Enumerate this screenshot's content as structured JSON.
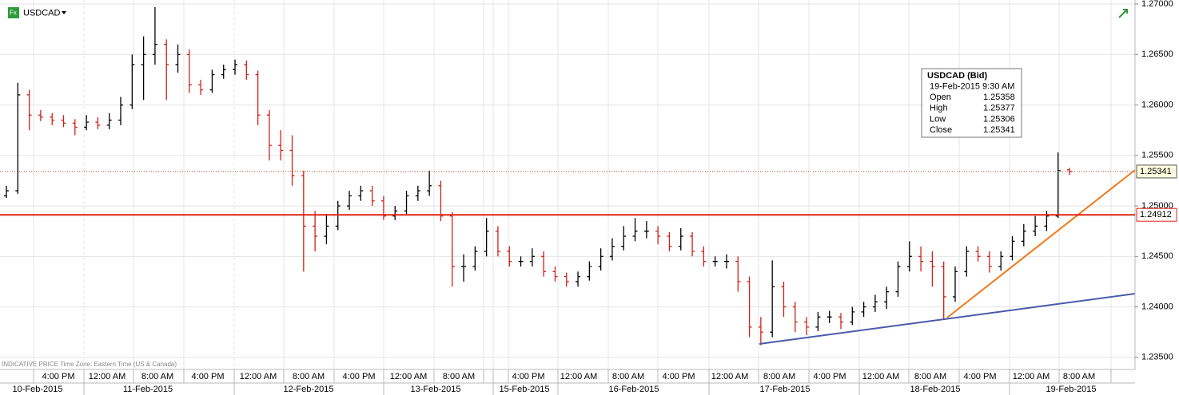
{
  "chart_data": {
    "type": "ohlc",
    "symbol": "USDCAD",
    "footer": "INDICATIVE PRICE   Time Zone: Eastern Time (US & Canada)",
    "up_color": "#000000",
    "down_color": "#d0201a",
    "ylim": [
      1.2338,
      1.2704
    ],
    "yticks": [
      {
        "value": 1.235,
        "label": "1.23500"
      },
      {
        "value": 1.24,
        "label": "1.24000"
      },
      {
        "value": 1.245,
        "label": "1.24500"
      },
      {
        "value": 1.25,
        "label": "1.25000"
      },
      {
        "value": 1.255,
        "label": "1.25500"
      },
      {
        "value": 1.26,
        "label": "1.26000"
      },
      {
        "value": 1.265,
        "label": "1.26500"
      },
      {
        "value": 1.27,
        "label": "1.27000"
      }
    ],
    "grid": true,
    "hline": 1.24912,
    "hline_color": "#e0231a",
    "last_price": 1.25341,
    "time_labels": [
      "4:00 PM",
      "12:00 AM",
      "8:00 AM",
      "4:00 PM",
      "12:00 AM",
      "8:00 AM",
      "4:00 PM",
      "12:00 AM",
      "8:00 AM",
      "4:00 PM",
      "12:00 AM",
      "8:00 AM",
      "4:00 PM",
      "12:00 AM",
      "8:00 AM",
      "4:00 PM",
      "12:00 AM",
      "8:00 AM",
      "4:00 PM",
      "12:00 AM",
      "8:00 AM"
    ],
    "date_labels": [
      "10-Feb-2015",
      "11-Feb-2015",
      "12-Feb-2015",
      "13-Feb-2015",
      "15-Feb-2015",
      "16-Feb-2015",
      "17-Feb-2015",
      "18-Feb-2015",
      "19-Feb-2015"
    ],
    "tooltip": {
      "title": "USDCAD (Bid)",
      "time": "19-Feb-2015 9:30 AM",
      "rows": [
        [
          "Open",
          1.25358
        ],
        [
          "High",
          1.25377
        ],
        [
          "Low",
          1.25306
        ],
        [
          "Close",
          1.25341
        ]
      ]
    },
    "ohlc": [
      [
        1.251,
        1.252,
        1.2508,
        1.2515
      ],
      [
        1.2515,
        1.2622,
        1.2512,
        1.261
      ],
      [
        1.261,
        1.2615,
        1.2575,
        1.259
      ],
      [
        1.259,
        1.2595,
        1.2584,
        1.2588
      ],
      [
        1.2588,
        1.2592,
        1.258,
        1.2585
      ],
      [
        1.2585,
        1.259,
        1.2578,
        1.2582
      ],
      [
        1.2582,
        1.2586,
        1.257,
        1.2578
      ],
      [
        1.2578,
        1.259,
        1.2575,
        1.2583
      ],
      [
        1.2583,
        1.2588,
        1.2576,
        1.258
      ],
      [
        1.258,
        1.2592,
        1.2576,
        1.2585
      ],
      [
        1.2585,
        1.2608,
        1.258,
        1.26
      ],
      [
        1.26,
        1.265,
        1.2596,
        1.264
      ],
      [
        1.264,
        1.2668,
        1.2605,
        1.265
      ],
      [
        1.265,
        1.2697,
        1.264,
        1.266
      ],
      [
        1.266,
        1.2665,
        1.2605,
        1.264
      ],
      [
        1.264,
        1.266,
        1.2632,
        1.265
      ],
      [
        1.265,
        1.2655,
        1.2612,
        1.262
      ],
      [
        1.262,
        1.2625,
        1.261,
        1.2615
      ],
      [
        1.2615,
        1.2635,
        1.2612,
        1.263
      ],
      [
        1.263,
        1.264,
        1.2626,
        1.2635
      ],
      [
        1.2635,
        1.2645,
        1.263,
        1.264
      ],
      [
        1.264,
        1.2644,
        1.2625,
        1.263
      ],
      [
        1.263,
        1.2634,
        1.258,
        1.259
      ],
      [
        1.259,
        1.2595,
        1.2545,
        1.256
      ],
      [
        1.256,
        1.2575,
        1.2545,
        1.2555
      ],
      [
        1.2555,
        1.257,
        1.252,
        1.253
      ],
      [
        1.253,
        1.2535,
        1.2435,
        1.248
      ],
      [
        1.248,
        1.2495,
        1.2455,
        1.247
      ],
      [
        1.247,
        1.2492,
        1.2462,
        1.248
      ],
      [
        1.248,
        1.2505,
        1.2476,
        1.25
      ],
      [
        1.25,
        1.2515,
        1.2496,
        1.251
      ],
      [
        1.251,
        1.252,
        1.2505,
        1.2515
      ],
      [
        1.2515,
        1.252,
        1.25,
        1.2505
      ],
      [
        1.2505,
        1.251,
        1.2486,
        1.249
      ],
      [
        1.249,
        1.25,
        1.2486,
        1.2495
      ],
      [
        1.2495,
        1.2515,
        1.2492,
        1.251
      ],
      [
        1.251,
        1.252,
        1.2505,
        1.2515
      ],
      [
        1.2515,
        1.2535,
        1.251,
        1.252
      ],
      [
        1.252,
        1.2525,
        1.2485,
        1.249
      ],
      [
        1.249,
        1.2494,
        1.242,
        1.244
      ],
      [
        1.244,
        1.2452,
        1.2425,
        1.244
      ],
      [
        1.244,
        1.246,
        1.2436,
        1.2455
      ],
      [
        1.2455,
        1.2488,
        1.245,
        1.2475
      ],
      [
        1.2475,
        1.248,
        1.245,
        1.2455
      ],
      [
        1.2455,
        1.246,
        1.244,
        1.2445
      ],
      [
        1.2445,
        1.245,
        1.244,
        1.2445
      ],
      [
        1.2445,
        1.2458,
        1.244,
        1.245
      ],
      [
        1.245,
        1.2455,
        1.243,
        1.2435
      ],
      [
        1.2435,
        1.244,
        1.2425,
        1.243
      ],
      [
        1.243,
        1.2434,
        1.242,
        1.2425
      ],
      [
        1.2425,
        1.2435,
        1.242,
        1.243
      ],
      [
        1.243,
        1.2445,
        1.2426,
        1.244
      ],
      [
        1.244,
        1.2458,
        1.2436,
        1.245
      ],
      [
        1.245,
        1.2468,
        1.2446,
        1.246
      ],
      [
        1.246,
        1.248,
        1.2456,
        1.247
      ],
      [
        1.247,
        1.2488,
        1.2465,
        1.2475
      ],
      [
        1.2475,
        1.2485,
        1.2468,
        1.2475
      ],
      [
        1.2475,
        1.248,
        1.2462,
        1.247
      ],
      [
        1.247,
        1.2474,
        1.2455,
        1.246
      ],
      [
        1.246,
        1.2478,
        1.2456,
        1.247
      ],
      [
        1.247,
        1.2474,
        1.245,
        1.2455
      ],
      [
        1.2455,
        1.246,
        1.244,
        1.2445
      ],
      [
        1.2445,
        1.245,
        1.244,
        1.2445
      ],
      [
        1.2445,
        1.2452,
        1.2438,
        1.2445
      ],
      [
        1.2445,
        1.245,
        1.2415,
        1.2425
      ],
      [
        1.2425,
        1.243,
        1.237,
        1.238
      ],
      [
        1.238,
        1.239,
        1.2362,
        1.2375
      ],
      [
        1.2375,
        1.2446,
        1.237,
        1.242
      ],
      [
        1.242,
        1.2425,
        1.239,
        1.24
      ],
      [
        1.24,
        1.2405,
        1.2375,
        1.2385
      ],
      [
        1.2385,
        1.239,
        1.2372,
        1.238
      ],
      [
        1.238,
        1.2395,
        1.2376,
        1.239
      ],
      [
        1.239,
        1.2396,
        1.2384,
        1.239
      ],
      [
        1.239,
        1.2394,
        1.2378,
        1.2385
      ],
      [
        1.2385,
        1.24,
        1.2382,
        1.2395
      ],
      [
        1.2395,
        1.2405,
        1.239,
        1.24
      ],
      [
        1.24,
        1.2412,
        1.2395,
        1.2405
      ],
      [
        1.2405,
        1.242,
        1.2398,
        1.2415
      ],
      [
        1.2415,
        1.2445,
        1.241,
        1.244
      ],
      [
        1.244,
        1.2465,
        1.2435,
        1.245
      ],
      [
        1.245,
        1.246,
        1.2435,
        1.2445
      ],
      [
        1.2445,
        1.2455,
        1.242,
        1.244
      ],
      [
        1.244,
        1.2445,
        1.2388,
        1.241
      ],
      [
        1.241,
        1.244,
        1.2405,
        1.2435
      ],
      [
        1.2435,
        1.246,
        1.243,
        1.2455
      ],
      [
        1.2455,
        1.246,
        1.2445,
        1.245
      ],
      [
        1.245,
        1.2455,
        1.2434,
        1.244
      ],
      [
        1.244,
        1.2455,
        1.2436,
        1.245
      ],
      [
        1.245,
        1.247,
        1.2446,
        1.2465
      ],
      [
        1.2465,
        1.2482,
        1.246,
        1.2475
      ],
      [
        1.2475,
        1.249,
        1.247,
        1.248
      ],
      [
        1.248,
        1.2495,
        1.2475,
        1.249
      ],
      [
        1.249,
        1.2553,
        1.2488,
        1.2535
      ],
      [
        1.25358,
        1.25377,
        1.25306,
        1.25341
      ]
    ]
  }
}
